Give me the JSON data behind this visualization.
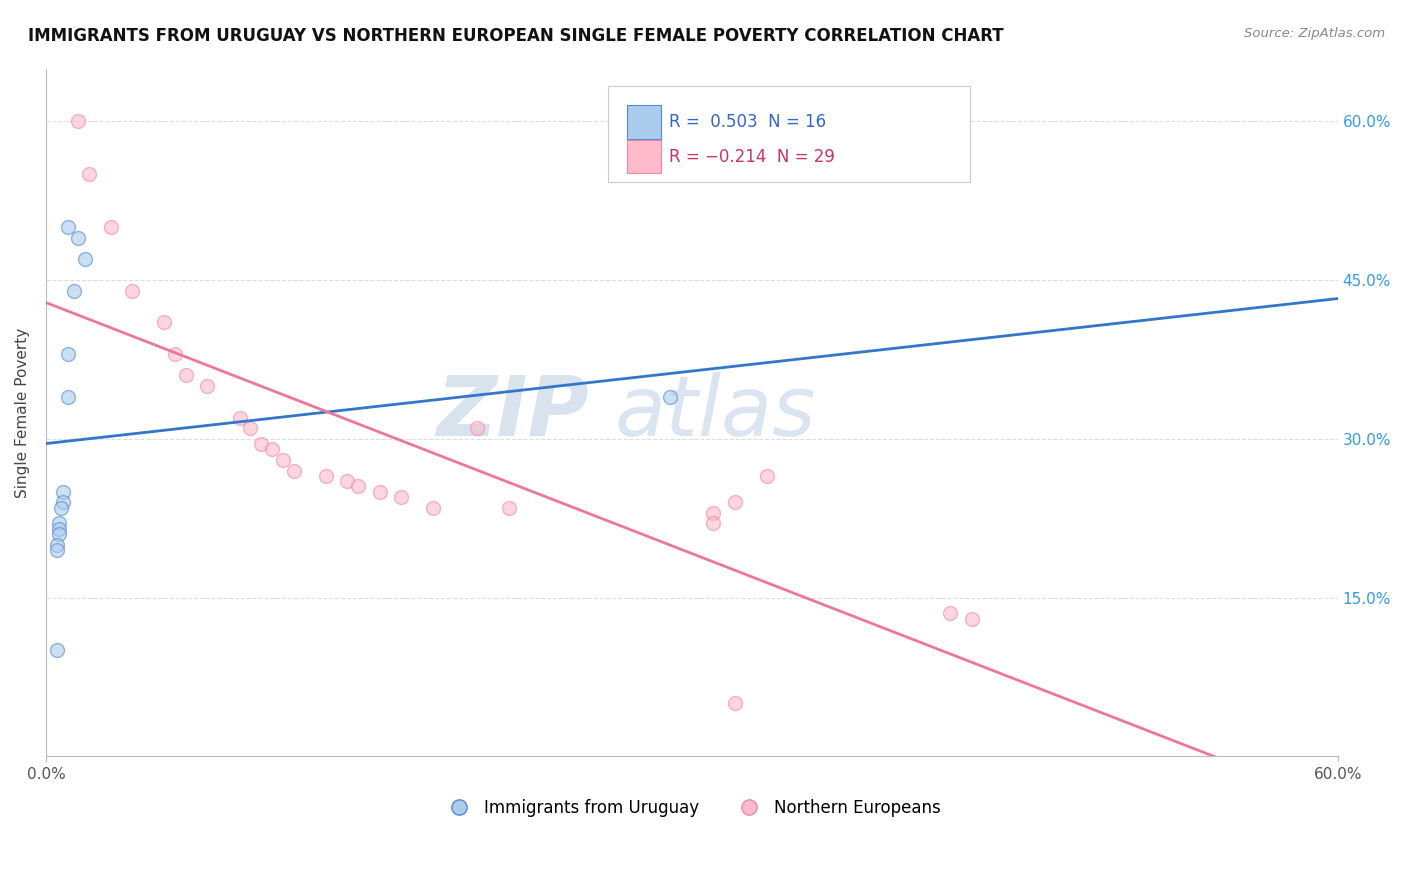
{
  "title": "IMMIGRANTS FROM URUGUAY VS NORTHERN EUROPEAN SINGLE FEMALE POVERTY CORRELATION CHART",
  "source": "Source: ZipAtlas.com",
  "ylabel": "Single Female Poverty",
  "watermark_zip": "ZIP",
  "watermark_atlas": "atlas",
  "xmin": 0.0,
  "xmax": 0.6,
  "ymin": 0.0,
  "ymax": 0.65,
  "blue_R": 0.503,
  "blue_N": 16,
  "pink_R": -0.214,
  "pink_N": 29,
  "blue_color": "#AACCEE",
  "pink_color": "#FFBBCC",
  "blue_edge_color": "#5588CC",
  "pink_edge_color": "#EE88AA",
  "blue_line_color": "#3377CC",
  "pink_line_color": "#EE7799",
  "background_color": "#FFFFFF",
  "grid_color": "#DDDDDD",
  "title_color": "#111111",
  "source_color": "#888888",
  "blue_scatter_x": [
    0.01,
    0.015,
    0.018,
    0.013,
    0.01,
    0.01,
    0.008,
    0.008,
    0.007,
    0.006,
    0.006,
    0.006,
    0.005,
    0.005,
    0.005,
    0.29
  ],
  "blue_scatter_y": [
    0.5,
    0.49,
    0.47,
    0.44,
    0.38,
    0.34,
    0.25,
    0.24,
    0.235,
    0.22,
    0.215,
    0.21,
    0.2,
    0.195,
    0.1,
    0.34
  ],
  "pink_scatter_x": [
    0.015,
    0.02,
    0.03,
    0.04,
    0.055,
    0.06,
    0.065,
    0.075,
    0.09,
    0.095,
    0.1,
    0.105,
    0.11,
    0.115,
    0.13,
    0.14,
    0.145,
    0.155,
    0.165,
    0.18,
    0.2,
    0.215,
    0.32,
    0.335,
    0.42,
    0.43,
    0.31,
    0.31,
    0.32
  ],
  "pink_scatter_y": [
    0.6,
    0.55,
    0.5,
    0.44,
    0.41,
    0.38,
    0.36,
    0.35,
    0.32,
    0.31,
    0.295,
    0.29,
    0.28,
    0.27,
    0.265,
    0.26,
    0.255,
    0.25,
    0.245,
    0.235,
    0.31,
    0.235,
    0.24,
    0.265,
    0.135,
    0.13,
    0.23,
    0.22,
    0.05
  ],
  "marker_size": 100,
  "marker_alpha": 0.6,
  "legend_label_blue": "Immigrants from Uruguay",
  "legend_label_pink": "Northern Europeans",
  "legend_R_blue": "R =  0.503",
  "legend_N_blue": "N = 16",
  "legend_R_pink": "R = −0.214",
  "legend_N_pink": "N = 29"
}
